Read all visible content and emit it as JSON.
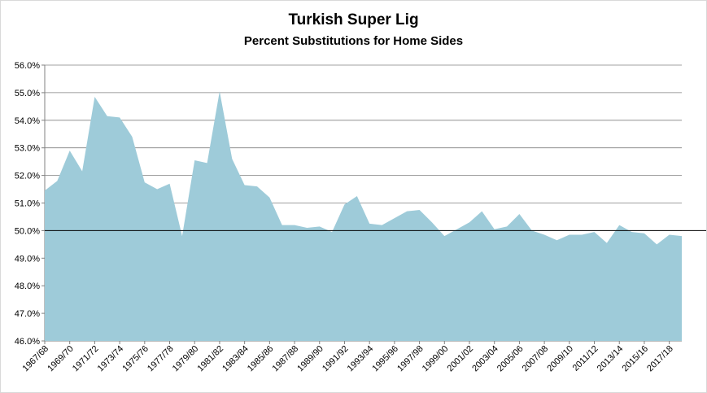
{
  "chart_data": {
    "type": "area",
    "title": "Turkish Super Lig",
    "subtitle": "Percent Substitutions for Home Sides",
    "xlabel": "",
    "ylabel": "",
    "ylim": [
      46.0,
      56.0
    ],
    "y_ticks": [
      "46.0%",
      "47.0%",
      "48.0%",
      "49.0%",
      "50.0%",
      "51.0%",
      "52.0%",
      "53.0%",
      "54.0%",
      "55.0%",
      "56.0%"
    ],
    "x_tick_labels": [
      "1967/68",
      "1969/70",
      "1971/72",
      "1973/74",
      "1975/76",
      "1977/78",
      "1979/80",
      "1981/82",
      "1983/84",
      "1985/86",
      "1987/88",
      "1989/90",
      "1991/92",
      "1993/94",
      "1995/96",
      "1997/98",
      "1999/00",
      "2001/02",
      "2003/04",
      "2005/06",
      "2007/08",
      "2009/10",
      "2011/12",
      "2013/14",
      "2015/16",
      "2017/18"
    ],
    "reference_line": 50.0,
    "grid": true,
    "fill_color": "#9ecbd9",
    "categories": [
      "1967/68",
      "1968/69",
      "1969/70",
      "1970/71",
      "1971/72",
      "1972/73",
      "1973/74",
      "1974/75",
      "1975/76",
      "1976/77",
      "1977/78",
      "1978/79",
      "1979/80",
      "1980/81",
      "1981/82",
      "1982/83",
      "1983/84",
      "1984/85",
      "1985/86",
      "1986/87",
      "1987/88",
      "1988/89",
      "1989/90",
      "1990/91",
      "1991/92",
      "1992/93",
      "1993/94",
      "1994/95",
      "1995/96",
      "1996/97",
      "1997/98",
      "1998/99",
      "1999/00",
      "2000/01",
      "2001/02",
      "2002/03",
      "2003/04",
      "2004/05",
      "2005/06",
      "2006/07",
      "2007/08",
      "2008/09",
      "2009/10",
      "2010/11",
      "2011/12",
      "2012/13",
      "2013/14",
      "2014/15",
      "2015/16",
      "2016/17",
      "2017/18",
      "2018/19"
    ],
    "values": [
      51.45,
      51.8,
      52.9,
      52.15,
      54.85,
      54.15,
      54.1,
      53.4,
      51.75,
      51.5,
      51.7,
      49.8,
      52.55,
      52.45,
      55.05,
      52.6,
      51.65,
      51.6,
      51.2,
      50.2,
      50.2,
      50.1,
      50.15,
      49.95,
      50.95,
      51.25,
      50.25,
      50.2,
      50.45,
      50.7,
      50.75,
      50.3,
      49.8,
      50.05,
      50.3,
      50.7,
      50.05,
      50.15,
      50.6,
      50.0,
      49.85,
      49.65,
      49.85,
      49.85,
      49.95,
      49.55,
      50.2,
      49.95,
      49.9,
      49.5,
      49.85,
      49.8
    ]
  }
}
